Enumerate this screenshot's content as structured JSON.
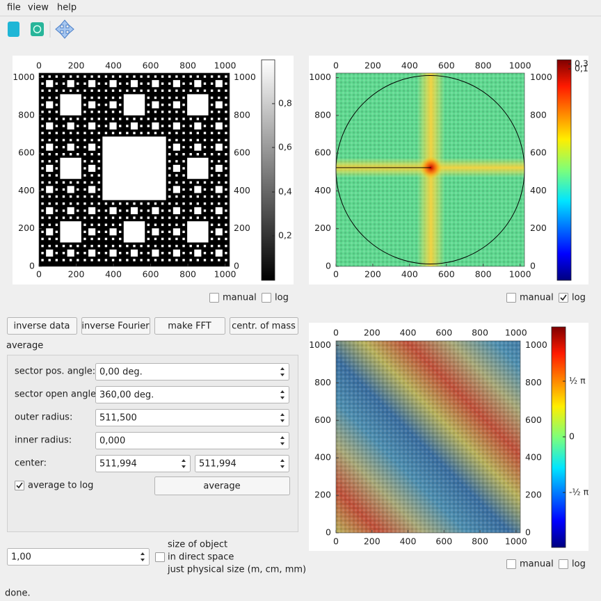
{
  "menu": [
    "file",
    "view",
    "help"
  ],
  "plots": [
    {
      "xlim": [
        0,
        1024
      ],
      "ylim": [
        0,
        1024
      ],
      "x_ticks": [
        0,
        200,
        400,
        600,
        800,
        1000
      ],
      "y_ticks": [
        0,
        200,
        400,
        600,
        800,
        1000
      ],
      "colorbar_ticks": [
        "0,8",
        "0,6",
        "0,4",
        "0,2"
      ],
      "manual": "manual",
      "log": "log",
      "log_checked": false
    },
    {
      "xlim": [
        0,
        1024
      ],
      "ylim": [
        0,
        1024
      ],
      "x_ticks": [
        0,
        200,
        400,
        600,
        800,
        1000
      ],
      "y_ticks": [
        0,
        200,
        400,
        600,
        800,
        1000
      ],
      "colorbar_ticks": [
        "0,3",
        "0,1"
      ],
      "manual": "manual",
      "log": "log",
      "log_checked": true
    },
    {
      "xlim": [
        0,
        1024
      ],
      "ylim": [
        0,
        1024
      ],
      "x_ticks": [
        0,
        200,
        400,
        600,
        800,
        1000
      ],
      "y_ticks": [
        0,
        200,
        400,
        600,
        800,
        1000
      ],
      "colorbar_ticks": [
        "½ π",
        "0",
        "-½ π"
      ],
      "manual": "manual",
      "log": "log",
      "log_checked": false
    }
  ],
  "buttons": [
    "inverse data",
    "inverse Fourier",
    "make FFT",
    "centr. of mass"
  ],
  "average": {
    "title": "average",
    "fields": [
      {
        "label": "sector pos. angle:",
        "value": "0,00 deg."
      },
      {
        "label": "sector open angle:",
        "value": "360,00 deg."
      },
      {
        "label": "outer radius:",
        "value": "511,500"
      },
      {
        "label": "inner radius:",
        "value": "0,000"
      }
    ],
    "center": {
      "label": "center:",
      "values": [
        "511,994",
        "511,994"
      ]
    },
    "average_to_log": "average to log",
    "average_to_log_checked": true,
    "button": "average"
  },
  "size": {
    "value": "1,00",
    "lines": [
      "size of object",
      "in direct space",
      "just physical size (m, cm, mm)"
    ],
    "checked": false
  },
  "status": "done."
}
